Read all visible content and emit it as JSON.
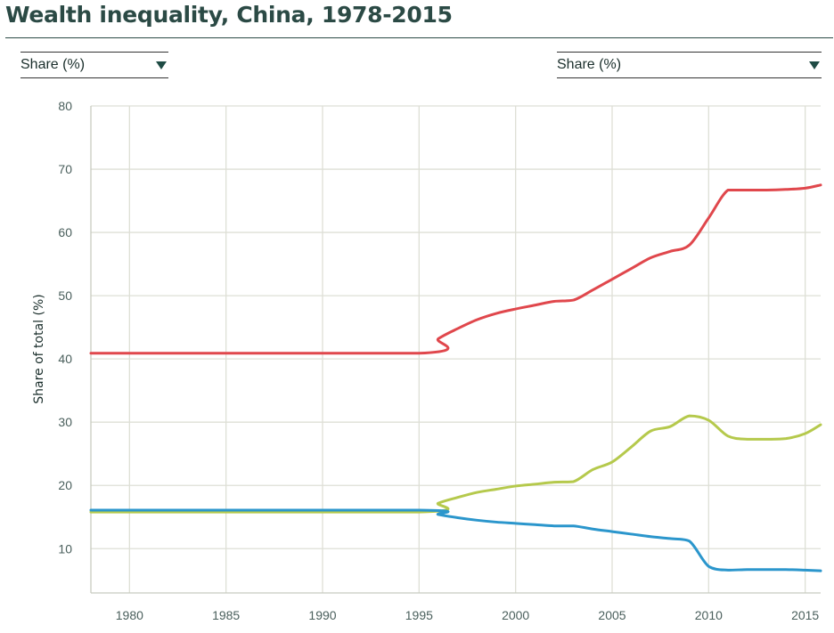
{
  "header": {
    "title": "Wealth inequality, China, 1978-2015"
  },
  "controls": {
    "left_dropdown": "Share (%)",
    "right_dropdown": "Share (%)"
  },
  "chart_data": {
    "type": "line",
    "title": "Wealth inequality, China, 1978-2015",
    "xlabel": "",
    "ylabel": "Share of total (%)",
    "xlim": [
      1978,
      2015.8
    ],
    "ylim": [
      3,
      80
    ],
    "xticks": [
      1980,
      1985,
      1990,
      1995,
      2000,
      2005,
      2010,
      2015
    ],
    "yticks": [
      10,
      20,
      30,
      40,
      50,
      60,
      70,
      80
    ],
    "grid": true,
    "legend": "none",
    "series": [
      {
        "color": "#e0474c",
        "x": [
          1978,
          1995,
          1996,
          1997,
          1998,
          1999,
          2000,
          2001,
          2002,
          2003,
          2004,
          2005,
          2006,
          2007,
          2008,
          2009,
          2010,
          2011,
          2012,
          2013,
          2014,
          2015,
          2015.8
        ],
        "y": [
          40.9,
          40.9,
          43.2,
          44.8,
          46.2,
          47.2,
          47.9,
          48.5,
          49.1,
          49.3,
          50.9,
          52.6,
          54.3,
          56.0,
          57.0,
          58.0,
          62.3,
          66.7,
          66.7,
          66.7,
          66.8,
          67.0,
          67.5
        ]
      },
      {
        "color": "#b5c94c",
        "x": [
          1978,
          1995,
          1996,
          1997,
          1998,
          1999,
          2000,
          2001,
          2002,
          2003,
          2004,
          2005,
          2006,
          2007,
          2008,
          2009,
          2010,
          2011,
          2012,
          2013,
          2014,
          2015,
          2015.8
        ],
        "y": [
          15.8,
          15.8,
          17.2,
          18.1,
          18.9,
          19.4,
          19.9,
          20.2,
          20.5,
          20.6,
          22.5,
          23.7,
          26.1,
          28.6,
          29.3,
          31.0,
          30.3,
          27.8,
          27.3,
          27.3,
          27.4,
          28.2,
          29.6
        ]
      },
      {
        "color": "#2b96cc",
        "x": [
          1978,
          1995,
          1996,
          1997,
          1998,
          1999,
          2000,
          2001,
          2002,
          2003,
          2004,
          2005,
          2006,
          2007,
          2008,
          2009,
          2010,
          2011,
          2012,
          2013,
          2014,
          2015,
          2015.8
        ],
        "y": [
          16.1,
          16.1,
          15.4,
          14.9,
          14.5,
          14.2,
          14.0,
          13.8,
          13.6,
          13.6,
          13.1,
          12.7,
          12.3,
          11.9,
          11.6,
          11.2,
          7.2,
          6.6,
          6.7,
          6.7,
          6.7,
          6.6,
          6.5
        ]
      }
    ]
  }
}
